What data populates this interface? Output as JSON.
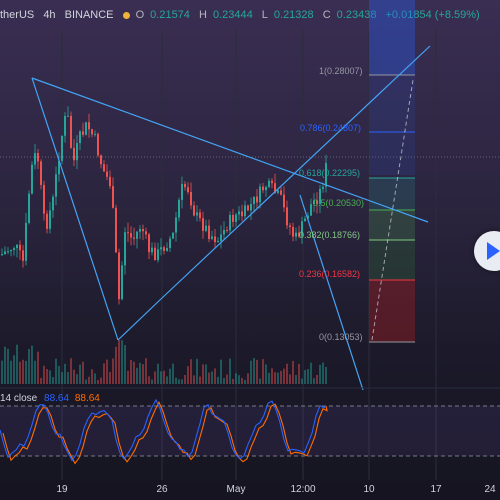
{
  "header": {
    "symbol": "therUS",
    "interval": "4h",
    "exchange": "BINANCE",
    "open_label": "O",
    "open": "0.21574",
    "high_label": "H",
    "high": "0.23444",
    "low_label": "L",
    "low": "0.21328",
    "close_label": "C",
    "close": "0.23438",
    "change": "+0.01854 (+8.59%)"
  },
  "fib_levels": [
    {
      "label": "1(0.28007)",
      "color": "#9598a1"
    },
    {
      "label": "0.786(0.24807)",
      "color": "#2962ff"
    },
    {
      "label": "0.618(0.22295)",
      "color": "#26a69a"
    },
    {
      "label": "0.5(0.20530)",
      "color": "#4caf50"
    },
    {
      "label": "0.382(0.18766)",
      "color": "#81c784"
    },
    {
      "label": "0.236(0.16582)",
      "color": "#f23645"
    },
    {
      "label": "0(0.13053)",
      "color": "#9598a1"
    }
  ],
  "oscillator": {
    "name": "14 close",
    "k_value": "88.64",
    "d_value": "88.64",
    "k_color": "#2962ff",
    "d_color": "#ff6d00"
  },
  "x_axis": {
    "labels": [
      "19",
      "26",
      "May",
      "12:00",
      "10",
      "17",
      "24"
    ]
  },
  "colors": {
    "up": "#26a69a",
    "down": "#ef5350",
    "trendline": "#42a5f5",
    "background": "#131722"
  },
  "icons": {
    "play_button": "play-icon"
  }
}
